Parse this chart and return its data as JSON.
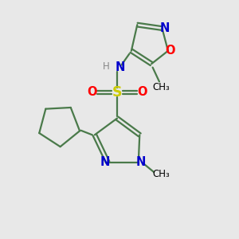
{
  "background_color": "#e8e8e8",
  "bond_color": "#4a7a4a",
  "atom_colors": {
    "N": "#0000cc",
    "O": "#ff0000",
    "S": "#cccc00",
    "H": "#888888",
    "C": "#000000"
  },
  "figsize": [
    3.0,
    3.0
  ],
  "dpi": 100
}
